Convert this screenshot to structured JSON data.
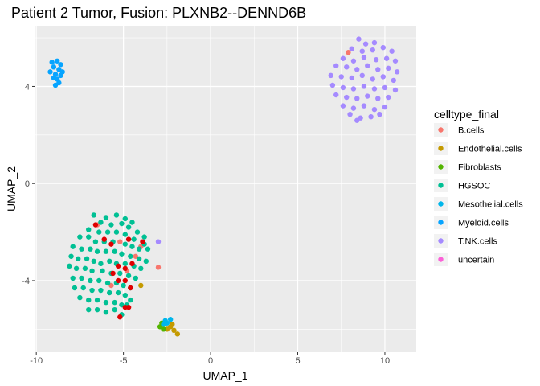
{
  "chart_data": {
    "type": "scatter",
    "title": "Patient 2 Tumor, Fusion:  PLXNB2--DENND6B",
    "xlabel": "UMAP_1",
    "ylabel": "UMAP_2",
    "xlim": [
      -10.1,
      11.8
    ],
    "ylim": [
      -6.95,
      6.5
    ],
    "xticks": [
      -10,
      -5,
      0,
      5,
      10
    ],
    "yticks": [
      -4,
      0,
      4
    ],
    "grid": true,
    "legend": {
      "title": "celltype_final",
      "placement": "right"
    },
    "series": [
      {
        "name": "B.cells",
        "color": "#F8766D",
        "points": [
          [
            -6.5,
            -1.7
          ],
          [
            -5.2,
            -2.4
          ],
          [
            -4.3,
            -3.0
          ],
          [
            -4.0,
            -2.6
          ],
          [
            -4.8,
            -3.6
          ],
          [
            -3.0,
            -3.45
          ],
          [
            -5.7,
            -4.2
          ],
          [
            7.9,
            5.4
          ]
        ]
      },
      {
        "name": "Endothelial.cells",
        "color": "#C49A00",
        "points": [
          [
            -4.0,
            -4.2
          ],
          [
            -2.3,
            -5.9
          ],
          [
            -2.1,
            -6.05
          ],
          [
            -1.9,
            -6.2
          ],
          [
            -2.5,
            -6.0
          ],
          [
            -2.2,
            -5.8
          ]
        ]
      },
      {
        "name": "Fibroblasts",
        "color": "#53B400",
        "points": [
          [
            -2.9,
            -5.9
          ],
          [
            -2.7,
            -6.0
          ],
          [
            -2.8,
            -5.75
          ]
        ]
      },
      {
        "name": "HGSOC",
        "color": "#00C094",
        "points": [
          [
            -6.7,
            -1.3
          ],
          [
            -6.0,
            -1.4
          ],
          [
            -5.4,
            -1.3
          ],
          [
            -4.9,
            -1.45
          ],
          [
            -4.5,
            -1.6
          ],
          [
            -6.3,
            -1.6
          ],
          [
            -5.7,
            -1.7
          ],
          [
            -5.1,
            -1.65
          ],
          [
            -4.7,
            -1.8
          ],
          [
            -4.2,
            -2.0
          ],
          [
            -3.8,
            -2.2
          ],
          [
            -7.0,
            -1.9
          ],
          [
            -6.4,
            -2.0
          ],
          [
            -5.9,
            -2.0
          ],
          [
            -5.4,
            -2.0
          ],
          [
            -4.9,
            -2.1
          ],
          [
            -4.4,
            -2.3
          ],
          [
            -3.8,
            -2.5
          ],
          [
            -7.5,
            -2.2
          ],
          [
            -7.0,
            -2.2
          ],
          [
            -6.6,
            -2.4
          ],
          [
            -6.1,
            -2.4
          ],
          [
            -5.6,
            -2.4
          ],
          [
            -4.9,
            -2.5
          ],
          [
            -4.5,
            -2.6
          ],
          [
            -4.1,
            -2.7
          ],
          [
            -3.6,
            -2.7
          ],
          [
            -7.9,
            -2.6
          ],
          [
            -7.4,
            -2.7
          ],
          [
            -6.9,
            -2.7
          ],
          [
            -6.5,
            -2.8
          ],
          [
            -6.0,
            -2.8
          ],
          [
            -5.5,
            -2.8
          ],
          [
            -5.1,
            -2.9
          ],
          [
            -4.6,
            -3.0
          ],
          [
            -4.1,
            -3.1
          ],
          [
            -3.7,
            -3.2
          ],
          [
            -8.0,
            -3.0
          ],
          [
            -7.6,
            -3.1
          ],
          [
            -7.1,
            -3.1
          ],
          [
            -6.7,
            -3.2
          ],
          [
            -6.3,
            -3.3
          ],
          [
            -5.8,
            -3.2
          ],
          [
            -5.4,
            -3.3
          ],
          [
            -4.9,
            -3.3
          ],
          [
            -4.4,
            -3.4
          ],
          [
            -4.0,
            -3.5
          ],
          [
            -8.1,
            -3.4
          ],
          [
            -7.7,
            -3.5
          ],
          [
            -7.2,
            -3.5
          ],
          [
            -6.8,
            -3.6
          ],
          [
            -6.2,
            -3.6
          ],
          [
            -5.7,
            -3.7
          ],
          [
            -5.2,
            -3.7
          ],
          [
            -4.7,
            -3.8
          ],
          [
            -4.3,
            -3.9
          ],
          [
            -7.9,
            -3.9
          ],
          [
            -7.4,
            -3.9
          ],
          [
            -6.9,
            -4.0
          ],
          [
            -6.4,
            -4.0
          ],
          [
            -5.9,
            -4.1
          ],
          [
            -5.4,
            -4.1
          ],
          [
            -5.0,
            -4.2
          ],
          [
            -4.6,
            -4.3
          ],
          [
            -7.8,
            -4.3
          ],
          [
            -7.3,
            -4.3
          ],
          [
            -6.8,
            -4.4
          ],
          [
            -6.3,
            -4.4
          ],
          [
            -5.8,
            -4.5
          ],
          [
            -5.3,
            -4.5
          ],
          [
            -4.9,
            -4.6
          ],
          [
            -7.5,
            -4.7
          ],
          [
            -7.0,
            -4.8
          ],
          [
            -6.5,
            -4.8
          ],
          [
            -6.0,
            -4.9
          ],
          [
            -5.5,
            -4.9
          ],
          [
            -5.1,
            -5.0
          ],
          [
            -7.0,
            -5.2
          ],
          [
            -6.5,
            -5.2
          ],
          [
            -6.0,
            -5.3
          ],
          [
            -5.5,
            -5.2
          ],
          [
            -4.8,
            -5.0
          ],
          [
            -4.6,
            -4.8
          ],
          [
            -5.1,
            -5.4
          ]
        ]
      },
      {
        "name": "Mesothelial.cells",
        "color": "#00B6EB",
        "points": [
          [
            -2.6,
            -5.65
          ],
          [
            -2.3,
            -5.6
          ],
          [
            -2.7,
            -5.8
          ],
          [
            -2.5,
            -5.75
          ]
        ]
      },
      {
        "name": "Myeloid.cells",
        "color": "#06A4FF",
        "points": [
          [
            -9.1,
            5.0
          ],
          [
            -8.8,
            5.05
          ],
          [
            -8.6,
            4.9
          ],
          [
            -9.0,
            4.8
          ],
          [
            -8.7,
            4.7
          ],
          [
            -8.5,
            4.6
          ],
          [
            -9.2,
            4.6
          ],
          [
            -8.9,
            4.5
          ],
          [
            -8.6,
            4.45
          ],
          [
            -9.0,
            4.35
          ],
          [
            -8.8,
            4.3
          ],
          [
            -8.7,
            4.15
          ],
          [
            -8.9,
            4.05
          ]
        ]
      },
      {
        "name": "T.NK.cells",
        "color": "#A58AFF",
        "points": [
          [
            -3.0,
            -2.4
          ],
          [
            8.5,
            5.95
          ],
          [
            8.9,
            5.75
          ],
          [
            9.4,
            5.8
          ],
          [
            8.1,
            5.55
          ],
          [
            8.7,
            5.45
          ],
          [
            9.3,
            5.5
          ],
          [
            9.9,
            5.6
          ],
          [
            10.4,
            5.45
          ],
          [
            7.6,
            5.15
          ],
          [
            8.2,
            5.05
          ],
          [
            8.8,
            5.2
          ],
          [
            9.5,
            5.1
          ],
          [
            10.1,
            5.15
          ],
          [
            10.6,
            5.05
          ],
          [
            7.2,
            4.85
          ],
          [
            7.8,
            4.8
          ],
          [
            8.4,
            4.7
          ],
          [
            9.0,
            4.85
          ],
          [
            9.6,
            4.7
          ],
          [
            10.2,
            4.75
          ],
          [
            10.7,
            4.6
          ],
          [
            6.9,
            4.45
          ],
          [
            7.5,
            4.4
          ],
          [
            8.1,
            4.35
          ],
          [
            8.7,
            4.45
          ],
          [
            9.3,
            4.3
          ],
          [
            9.9,
            4.4
          ],
          [
            10.5,
            4.25
          ],
          [
            7.0,
            4.05
          ],
          [
            7.6,
            3.95
          ],
          [
            8.2,
            3.9
          ],
          [
            8.8,
            4.0
          ],
          [
            9.4,
            3.9
          ],
          [
            10.0,
            3.95
          ],
          [
            10.6,
            3.85
          ],
          [
            7.2,
            3.65
          ],
          [
            7.8,
            3.55
          ],
          [
            8.4,
            3.5
          ],
          [
            9.0,
            3.6
          ],
          [
            9.6,
            3.5
          ],
          [
            10.2,
            3.55
          ],
          [
            7.6,
            3.2
          ],
          [
            8.2,
            3.1
          ],
          [
            8.8,
            3.2
          ],
          [
            9.4,
            3.05
          ],
          [
            10.0,
            3.15
          ],
          [
            8.0,
            2.85
          ],
          [
            8.6,
            2.7
          ],
          [
            9.2,
            2.75
          ],
          [
            9.7,
            2.85
          ],
          [
            8.4,
            2.6
          ]
        ]
      },
      {
        "name": "uncertain",
        "color": "#FB61D7",
        "points": []
      },
      {
        "name": "fusion",
        "color": "#E00000",
        "points": [
          [
            -6.6,
            -1.7
          ],
          [
            -6.1,
            -2.3
          ],
          [
            -5.7,
            -2.5
          ],
          [
            -4.7,
            -2.3
          ],
          [
            -3.9,
            -2.4
          ],
          [
            -5.3,
            -3.4
          ],
          [
            -4.9,
            -3.5
          ],
          [
            -4.5,
            -3.3
          ],
          [
            -5.6,
            -3.7
          ],
          [
            -4.9,
            -4.0
          ],
          [
            -4.6,
            -4.3
          ],
          [
            -5.3,
            -4.0
          ],
          [
            -4.9,
            -5.1
          ],
          [
            -4.7,
            -5.1
          ],
          [
            -5.2,
            -5.5
          ]
        ]
      }
    ]
  }
}
